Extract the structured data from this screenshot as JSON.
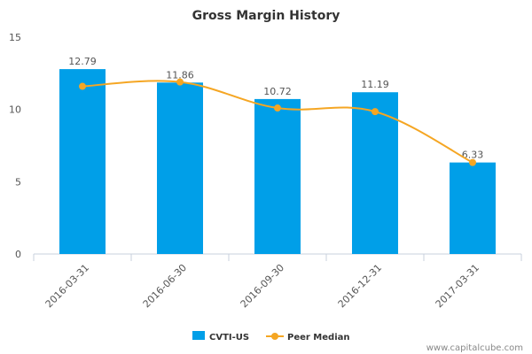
{
  "chart_data": {
    "type": "bar",
    "title": "Gross Margin History",
    "categories": [
      "2016-03-31",
      "2016-06-30",
      "2016-09-30",
      "2016-12-31",
      "2017-03-31"
    ],
    "series": [
      {
        "name": "CVTI-US",
        "type": "bar",
        "color": "#009fe8",
        "values": [
          12.79,
          11.86,
          10.72,
          11.19,
          6.33
        ],
        "labels": [
          "12.79",
          "11.86",
          "10.72",
          "11.19",
          "6.33"
        ]
      },
      {
        "name": "Peer Median",
        "type": "line",
        "color": "#f5a623",
        "values": [
          11.6,
          11.9,
          10.1,
          9.85,
          6.33
        ]
      }
    ],
    "yticks": [
      "0",
      "5",
      "10",
      "15"
    ],
    "ylim": [
      0,
      15
    ],
    "grid": false,
    "legend": "bottom-center"
  },
  "watermark": "www.capitalcube.com"
}
